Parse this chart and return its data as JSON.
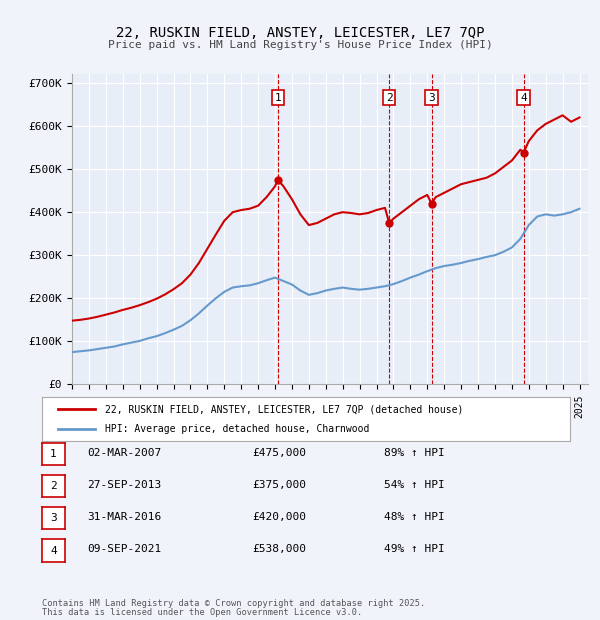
{
  "title": "22, RUSKIN FIELD, ANSTEY, LEICESTER, LE7 7QP",
  "subtitle": "Price paid vs. HM Land Registry's House Price Index (HPI)",
  "legend_label_red": "22, RUSKIN FIELD, ANSTEY, LEICESTER, LE7 7QP (detached house)",
  "legend_label_blue": "HPI: Average price, detached house, Charnwood",
  "footer1": "Contains HM Land Registry data © Crown copyright and database right 2025.",
  "footer2": "This data is licensed under the Open Government Licence v3.0.",
  "background_color": "#f0f4fa",
  "plot_bg_color": "#e8eef8",
  "grid_color": "#ffffff",
  "red_color": "#cc0000",
  "blue_color": "#6699cc",
  "ytick_labels": [
    "£0",
    "£100K",
    "£200K",
    "£300K",
    "£400K",
    "£500K",
    "£600K",
    "£700K"
  ],
  "ytick_values": [
    0,
    100000,
    200000,
    300000,
    400000,
    500000,
    600000,
    700000
  ],
  "xmin": 1995,
  "xmax": 2025.5,
  "ymin": 0,
  "ymax": 720000,
  "transactions": [
    {
      "num": 1,
      "date": "02-MAR-2007",
      "price": 475000,
      "pct": "89%",
      "year": 2007.17
    },
    {
      "num": 2,
      "date": "27-SEP-2013",
      "price": 375000,
      "pct": "54%",
      "year": 2013.75
    },
    {
      "num": 3,
      "date": "31-MAR-2016",
      "price": 420000,
      "pct": "48%",
      "year": 2016.25
    },
    {
      "num": 4,
      "date": "09-SEP-2021",
      "price": 538000,
      "pct": "49%",
      "year": 2021.69
    }
  ],
  "hpi_years": [
    1995.0,
    1995.5,
    1996.0,
    1996.5,
    1997.0,
    1997.5,
    1998.0,
    1998.5,
    1999.0,
    1999.5,
    2000.0,
    2000.5,
    2001.0,
    2001.5,
    2002.0,
    2002.5,
    2003.0,
    2003.5,
    2004.0,
    2004.5,
    2005.0,
    2005.5,
    2006.0,
    2006.5,
    2007.0,
    2007.5,
    2008.0,
    2008.5,
    2009.0,
    2009.5,
    2010.0,
    2010.5,
    2011.0,
    2011.5,
    2012.0,
    2012.5,
    2013.0,
    2013.5,
    2014.0,
    2014.5,
    2015.0,
    2015.5,
    2016.0,
    2016.5,
    2017.0,
    2017.5,
    2018.0,
    2018.5,
    2019.0,
    2019.5,
    2020.0,
    2020.5,
    2021.0,
    2021.5,
    2022.0,
    2022.5,
    2023.0,
    2023.5,
    2024.0,
    2024.5,
    2025.0
  ],
  "hpi_values": [
    75000,
    77000,
    79000,
    82000,
    85000,
    88000,
    93000,
    97000,
    101000,
    107000,
    112000,
    119000,
    127000,
    136000,
    149000,
    165000,
    183000,
    200000,
    215000,
    225000,
    228000,
    230000,
    235000,
    242000,
    248000,
    240000,
    232000,
    218000,
    208000,
    212000,
    218000,
    222000,
    225000,
    222000,
    220000,
    222000,
    225000,
    228000,
    233000,
    240000,
    248000,
    255000,
    263000,
    270000,
    275000,
    278000,
    282000,
    287000,
    291000,
    296000,
    300000,
    308000,
    318000,
    338000,
    370000,
    390000,
    395000,
    392000,
    395000,
    400000,
    408000
  ],
  "red_years": [
    1995.0,
    1995.5,
    1996.0,
    1996.5,
    1997.0,
    1997.5,
    1998.0,
    1998.5,
    1999.0,
    1999.5,
    2000.0,
    2000.5,
    2001.0,
    2001.5,
    2002.0,
    2002.5,
    2003.0,
    2003.5,
    2004.0,
    2004.5,
    2005.0,
    2005.5,
    2006.0,
    2006.5,
    2007.0,
    2007.17,
    2007.5,
    2008.0,
    2008.5,
    2009.0,
    2009.5,
    2010.0,
    2010.5,
    2011.0,
    2011.5,
    2012.0,
    2012.5,
    2013.0,
    2013.5,
    2013.75,
    2014.0,
    2014.5,
    2015.0,
    2015.5,
    2016.0,
    2016.25,
    2016.5,
    2017.0,
    2017.5,
    2018.0,
    2018.5,
    2019.0,
    2019.5,
    2020.0,
    2020.5,
    2021.0,
    2021.5,
    2021.69,
    2022.0,
    2022.5,
    2023.0,
    2023.5,
    2024.0,
    2024.5,
    2025.0
  ],
  "red_values": [
    148000,
    150000,
    153000,
    157000,
    162000,
    167000,
    173000,
    178000,
    184000,
    191000,
    199000,
    209000,
    221000,
    235000,
    255000,
    282000,
    315000,
    348000,
    380000,
    400000,
    405000,
    408000,
    415000,
    435000,
    460000,
    475000,
    460000,
    430000,
    395000,
    370000,
    375000,
    385000,
    395000,
    400000,
    398000,
    395000,
    398000,
    405000,
    410000,
    375000,
    385000,
    400000,
    415000,
    430000,
    440000,
    420000,
    435000,
    445000,
    455000,
    465000,
    470000,
    475000,
    480000,
    490000,
    505000,
    520000,
    545000,
    538000,
    565000,
    590000,
    605000,
    615000,
    625000,
    610000,
    620000
  ]
}
